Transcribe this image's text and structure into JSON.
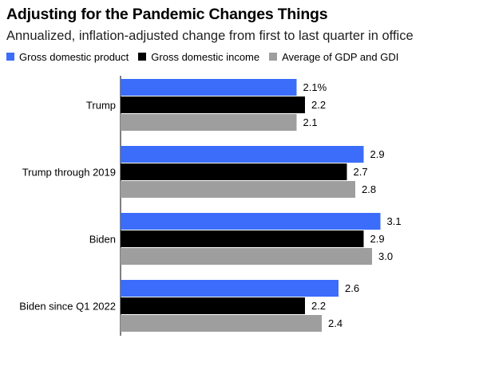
{
  "chart_data": {
    "type": "bar",
    "orientation": "horizontal",
    "title": "Adjusting for the Pandemic Changes Things",
    "subtitle": "Annualized, inflation-adjusted change from first to last quarter in office",
    "categories": [
      "Trump",
      "Trump through 2019",
      "Biden",
      "Biden since Q1 2022"
    ],
    "series": [
      {
        "name": "Gross domestic product",
        "color": "#3b6dfa",
        "values": [
          2.1,
          2.9,
          3.1,
          2.6
        ],
        "labels": [
          "2.1%",
          "2.9",
          "3.1",
          "2.6"
        ]
      },
      {
        "name": "Gross domestic income",
        "color": "#000000",
        "values": [
          2.2,
          2.7,
          2.9,
          2.2
        ],
        "labels": [
          "2.2",
          "2.7",
          "2.9",
          "2.2"
        ]
      },
      {
        "name": "Average of GDP and GDI",
        "color": "#9e9e9e",
        "values": [
          2.1,
          2.8,
          3.0,
          2.4
        ],
        "labels": [
          "2.1",
          "2.8",
          "3.0",
          "2.4"
        ]
      }
    ],
    "xlim": [
      0,
      3.3
    ],
    "grid": false,
    "legend_position": "top"
  }
}
